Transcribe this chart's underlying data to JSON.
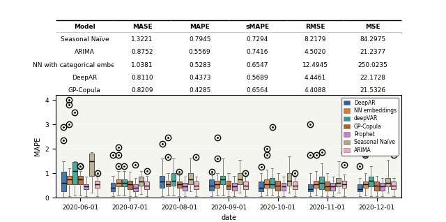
{
  "table": {
    "columns": [
      "Model",
      "MASE",
      "MAPE",
      "sMAPE",
      "RMSE",
      "MSE"
    ],
    "rows": [
      [
        "Seasonal Naïve",
        "1.3221",
        "0.7945",
        "0.7294",
        "8.2179",
        "84.2975"
      ],
      [
        "ARIMA",
        "0.8752",
        "0.5569",
        "0.7416",
        "4.5020",
        "21.2377"
      ],
      [
        "NN with categorical embeddings",
        "1.0381",
        "0.5283",
        "0.6547",
        "12.4945",
        "250.0235"
      ],
      [
        "DeepAR",
        "0.8110",
        "0.4373",
        "0.5689",
        "4.4461",
        "22.1728"
      ],
      [
        "GP-Copula",
        "0.8209",
        "0.4285",
        "0.6564",
        "4.4088",
        "21.5326"
      ]
    ]
  },
  "models": [
    "DeepAR",
    "NN embeddings",
    "deepVAR",
    "GP-Copula",
    "Prophet",
    "Seasonal Naïve",
    "ARIMA"
  ],
  "colors": [
    "#2166ac",
    "#d97c2b",
    "#2a9d8f",
    "#b85c1e",
    "#c77dcc",
    "#b5a585",
    "#f4a6c0"
  ],
  "dates": [
    "2020-06-01",
    "2020-07-01",
    "2020-08-01",
    "2020-09-01",
    "2020-10-01",
    "2020-11-01",
    "2020-12-01"
  ],
  "boxplot_data": {
    "2020-06-01": {
      "DeepAR": {
        "whislo": 0.0,
        "q1": 0.25,
        "med": 0.6,
        "q3": 1.05,
        "whishi": 1.5,
        "fliers": [
          2.35,
          2.9
        ]
      },
      "NN embeddings": {
        "whislo": 0.05,
        "q1": 0.55,
        "med": 0.75,
        "q3": 0.9,
        "whishi": 1.2,
        "fliers": [
          3.0,
          3.8,
          4.0
        ]
      },
      "deepVAR": {
        "whislo": 0.1,
        "q1": 0.55,
        "med": 1.1,
        "q3": 1.45,
        "whishi": 1.5,
        "fliers": [
          3.5
        ]
      },
      "GP-Copula": {
        "whislo": 0.1,
        "q1": 0.55,
        "med": 0.75,
        "q3": 0.9,
        "whishi": 1.1,
        "fliers": [
          1.28,
          1.3
        ]
      },
      "Prophet": {
        "whislo": 0.05,
        "q1": 0.35,
        "med": 0.45,
        "q3": 0.55,
        "whishi": 0.85,
        "fliers": []
      },
      "Seasonal Naïve": {
        "whislo": 0.2,
        "q1": 0.9,
        "med": 1.5,
        "q3": 1.8,
        "whishi": 1.85,
        "fliers": []
      },
      "ARIMA": {
        "whislo": 0.05,
        "q1": 0.4,
        "med": 0.55,
        "q3": 0.7,
        "whishi": 0.95,
        "fliers": [
          1.0
        ]
      }
    },
    "2020-07-01": {
      "DeepAR": {
        "whislo": 0.05,
        "q1": 0.25,
        "med": 0.4,
        "q3": 0.6,
        "whishi": 0.9,
        "fliers": [
          1.75
        ]
      },
      "NN embeddings": {
        "whislo": 0.1,
        "q1": 0.45,
        "med": 0.6,
        "q3": 0.75,
        "whishi": 1.1,
        "fliers": [
          1.3,
          1.75,
          2.05
        ]
      },
      "deepVAR": {
        "whislo": 0.1,
        "q1": 0.45,
        "med": 0.6,
        "q3": 0.75,
        "whishi": 1.1,
        "fliers": [
          1.3
        ]
      },
      "GP-Copula": {
        "whislo": 0.05,
        "q1": 0.35,
        "med": 0.55,
        "q3": 0.7,
        "whishi": 1.05,
        "fliers": []
      },
      "Prophet": {
        "whislo": 0.05,
        "q1": 0.25,
        "med": 0.4,
        "q3": 0.55,
        "whishi": 0.8,
        "fliers": [
          1.35
        ]
      },
      "Seasonal Naïve": {
        "whislo": 0.15,
        "q1": 0.5,
        "med": 0.65,
        "q3": 0.85,
        "whishi": 1.1,
        "fliers": []
      },
      "ARIMA": {
        "whislo": 0.05,
        "q1": 0.35,
        "med": 0.5,
        "q3": 0.65,
        "whishi": 0.9,
        "fliers": [
          1.1
        ]
      }
    },
    "2020-08-01": {
      "DeepAR": {
        "whislo": 0.05,
        "q1": 0.4,
        "med": 0.65,
        "q3": 0.9,
        "whishi": 1.6,
        "fliers": [
          2.2
        ]
      },
      "NN embeddings": {
        "whislo": 0.1,
        "q1": 0.45,
        "med": 0.55,
        "q3": 0.7,
        "whishi": 1.0,
        "fliers": [
          1.65,
          2.45
        ]
      },
      "deepVAR": {
        "whislo": 0.1,
        "q1": 0.5,
        "med": 0.7,
        "q3": 1.0,
        "whishi": 1.6,
        "fliers": []
      },
      "GP-Copula": {
        "whislo": 0.05,
        "q1": 0.4,
        "med": 0.55,
        "q3": 0.65,
        "whishi": 1.0,
        "fliers": [
          1.05
        ]
      },
      "Prophet": {
        "whislo": 0.05,
        "q1": 0.3,
        "med": 0.45,
        "q3": 0.6,
        "whishi": 0.85,
        "fliers": []
      },
      "Seasonal Naïve": {
        "whislo": 0.25,
        "q1": 0.55,
        "med": 0.75,
        "q3": 1.0,
        "whishi": 1.6,
        "fliers": []
      },
      "ARIMA": {
        "whislo": 0.05,
        "q1": 0.35,
        "med": 0.5,
        "q3": 0.65,
        "whishi": 0.85,
        "fliers": [
          1.65
        ]
      }
    },
    "2020-09-01": {
      "DeepAR": {
        "whislo": 0.05,
        "q1": 0.3,
        "med": 0.5,
        "q3": 0.75,
        "whishi": 1.0,
        "fliers": [
          1.05
        ]
      },
      "NN embeddings": {
        "whislo": 0.1,
        "q1": 0.4,
        "med": 0.55,
        "q3": 0.7,
        "whishi": 1.0,
        "fliers": [
          1.6,
          2.45
        ]
      },
      "deepVAR": {
        "whislo": 0.1,
        "q1": 0.55,
        "med": 0.75,
        "q3": 0.9,
        "whishi": 1.6,
        "fliers": []
      },
      "GP-Copula": {
        "whislo": 0.05,
        "q1": 0.35,
        "med": 0.5,
        "q3": 0.7,
        "whishi": 1.0,
        "fliers": []
      },
      "Prophet": {
        "whislo": 0.05,
        "q1": 0.3,
        "med": 0.45,
        "q3": 0.6,
        "whishi": 0.9,
        "fliers": []
      },
      "Seasonal Naïve": {
        "whislo": 0.2,
        "q1": 0.55,
        "med": 0.75,
        "q3": 1.0,
        "whishi": 1.55,
        "fliers": []
      },
      "ARIMA": {
        "whislo": 0.05,
        "q1": 0.35,
        "med": 0.5,
        "q3": 0.65,
        "whishi": 0.85,
        "fliers": [
          1.0
        ]
      }
    },
    "2020-10-01": {
      "DeepAR": {
        "whislo": 0.05,
        "q1": 0.25,
        "med": 0.4,
        "q3": 0.65,
        "whishi": 1.0,
        "fliers": [
          1.25
        ]
      },
      "NN embeddings": {
        "whislo": 0.1,
        "q1": 0.4,
        "med": 0.55,
        "q3": 0.75,
        "whishi": 1.15,
        "fliers": [
          1.75,
          2.0
        ]
      },
      "deepVAR": {
        "whislo": 0.1,
        "q1": 0.4,
        "med": 0.55,
        "q3": 0.8,
        "whishi": 1.2,
        "fliers": [
          2.9
        ]
      },
      "GP-Copula": {
        "whislo": 0.05,
        "q1": 0.3,
        "med": 0.5,
        "q3": 0.7,
        "whishi": 1.0,
        "fliers": []
      },
      "Prophet": {
        "whislo": 0.05,
        "q1": 0.3,
        "med": 0.45,
        "q3": 0.6,
        "whishi": 0.85,
        "fliers": []
      },
      "Seasonal Naïve": {
        "whislo": 0.2,
        "q1": 0.5,
        "med": 0.7,
        "q3": 1.0,
        "whishi": 1.7,
        "fliers": []
      },
      "ARIMA": {
        "whislo": 0.05,
        "q1": 0.35,
        "med": 0.5,
        "q3": 0.65,
        "whishi": 0.85,
        "fliers": [
          1.0
        ]
      }
    },
    "2020-11-01": {
      "DeepAR": {
        "whislo": 0.05,
        "q1": 0.25,
        "med": 0.35,
        "q3": 0.55,
        "whishi": 1.0,
        "fliers": [
          1.75,
          3.0
        ]
      },
      "NN embeddings": {
        "whislo": 0.1,
        "q1": 0.4,
        "med": 0.55,
        "q3": 0.7,
        "whishi": 1.1,
        "fliers": [
          1.75
        ]
      },
      "deepVAR": {
        "whislo": 0.05,
        "q1": 0.35,
        "med": 0.6,
        "q3": 0.85,
        "whishi": 1.4,
        "fliers": [
          1.85
        ]
      },
      "GP-Copula": {
        "whislo": 0.05,
        "q1": 0.3,
        "med": 0.45,
        "q3": 0.65,
        "whishi": 1.0,
        "fliers": []
      },
      "Prophet": {
        "whislo": 0.05,
        "q1": 0.3,
        "med": 0.45,
        "q3": 0.6,
        "whishi": 0.85,
        "fliers": []
      },
      "Seasonal Naïve": {
        "whislo": 0.2,
        "q1": 0.45,
        "med": 0.6,
        "q3": 0.8,
        "whishi": 1.5,
        "fliers": []
      },
      "ARIMA": {
        "whislo": 0.05,
        "q1": 0.4,
        "med": 0.55,
        "q3": 0.7,
        "whishi": 0.95,
        "fliers": [
          1.35,
          1.85
        ]
      }
    },
    "2020-12-01": {
      "DeepAR": {
        "whislo": 0.05,
        "q1": 0.25,
        "med": 0.35,
        "q3": 0.55,
        "whishi": 0.8,
        "fliers": [
          1.3
        ]
      },
      "NN embeddings": {
        "whislo": 0.1,
        "q1": 0.4,
        "med": 0.55,
        "q3": 0.65,
        "whishi": 1.0,
        "fliers": [
          1.75,
          1.8
        ]
      },
      "deepVAR": {
        "whislo": 0.05,
        "q1": 0.45,
        "med": 0.7,
        "q3": 0.85,
        "whishi": 1.3,
        "fliers": []
      },
      "GP-Copula": {
        "whislo": 0.05,
        "q1": 0.3,
        "med": 0.5,
        "q3": 0.65,
        "whishi": 0.9,
        "fliers": []
      },
      "Prophet": {
        "whislo": 0.05,
        "q1": 0.3,
        "med": 0.45,
        "q3": 0.6,
        "whishi": 0.8,
        "fliers": []
      },
      "Seasonal Naïve": {
        "whislo": 0.2,
        "q1": 0.45,
        "med": 0.6,
        "q3": 0.8,
        "whishi": 1.55,
        "fliers": []
      },
      "ARIMA": {
        "whislo": 0.05,
        "q1": 0.35,
        "med": 0.5,
        "q3": 0.65,
        "whishi": 0.8,
        "fliers": [
          1.75
        ]
      }
    }
  },
  "ylabel": "MAPE",
  "xlabel": "date",
  "ylim": [
    0,
    40
  ],
  "background_color": "#f5f5f0"
}
